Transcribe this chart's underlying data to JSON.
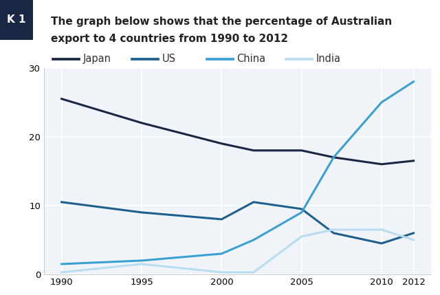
{
  "title_line1": "The graph below shows that the percentage of Australian",
  "title_line2": "export to 4 countries from 1990 to 2012",
  "header_label": "K 1",
  "years": [
    1990,
    1995,
    2000,
    2002,
    2005,
    2007,
    2010,
    2012
  ],
  "japan": [
    25.5,
    22,
    19,
    18,
    18,
    17,
    16,
    16.5
  ],
  "us": [
    10.5,
    9,
    8,
    10.5,
    9.5,
    6,
    4.5,
    6
  ],
  "china": [
    1.5,
    2,
    3,
    5,
    9,
    17,
    25,
    28
  ],
  "india": [
    0.3,
    1.5,
    0.3,
    0.3,
    5.5,
    6.5,
    6.5,
    5
  ],
  "japan_color": "#1a2744",
  "us_color": "#1e5f8e",
  "china_color": "#3aa0d0",
  "india_color": "#b8ddf0",
  "bg_color": "#ffffff",
  "plot_bg_color": "#f0f4f8",
  "grid_color": "#ffffff",
  "ylim": [
    0,
    30
  ],
  "yticks": [
    0,
    10,
    20,
    30
  ],
  "xticks": [
    1990,
    1995,
    2000,
    2005,
    2010,
    2012
  ],
  "legend_labels": [
    "Japan",
    "US",
    "China",
    "India"
  ],
  "linewidth": 2.2,
  "title_fontsize": 11,
  "legend_fontsize": 10.5,
  "tick_fontsize": 9.5,
  "header_bg": "#1a2744",
  "header_text": "K 1",
  "header_text_color": "#ffffff"
}
